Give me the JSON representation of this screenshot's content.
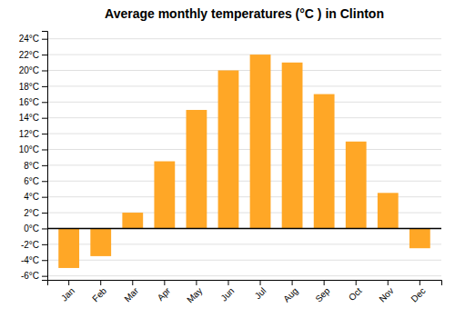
{
  "chart_data": {
    "type": "bar",
    "title": "Average monthly temperatures (°C ) in Clinton",
    "categories": [
      "Jan",
      "Feb",
      "Mar",
      "Apr",
      "May",
      "Jun",
      "Jul",
      "Aug",
      "Sep",
      "Oct",
      "Nov",
      "Dec"
    ],
    "values": [
      -5.0,
      -3.5,
      2.0,
      8.5,
      15.0,
      20.0,
      22.0,
      21.0,
      17.0,
      11.0,
      4.5,
      -2.5
    ],
    "color": "#FFA726",
    "ylim": [
      -6.5,
      25
    ],
    "yticks": [
      {
        "value": -6,
        "label": "-6°C"
      },
      {
        "value": -4,
        "label": "-4°C"
      },
      {
        "value": -2,
        "label": "-2°C"
      },
      {
        "value": 0,
        "label": "0°C"
      },
      {
        "value": 2,
        "label": "2°C"
      },
      {
        "value": 4,
        "label": "4°C"
      },
      {
        "value": 6,
        "label": "6°C"
      },
      {
        "value": 8,
        "label": "8°C"
      },
      {
        "value": 10,
        "label": "10°C"
      },
      {
        "value": 12,
        "label": "12°C"
      },
      {
        "value": 14,
        "label": "14°C"
      },
      {
        "value": 16,
        "label": "16°C"
      },
      {
        "value": 18,
        "label": "18°C"
      },
      {
        "value": 20,
        "label": "20°C"
      },
      {
        "value": 22,
        "label": "22°C"
      },
      {
        "value": 24,
        "label": "24°C"
      }
    ],
    "grid": true
  }
}
